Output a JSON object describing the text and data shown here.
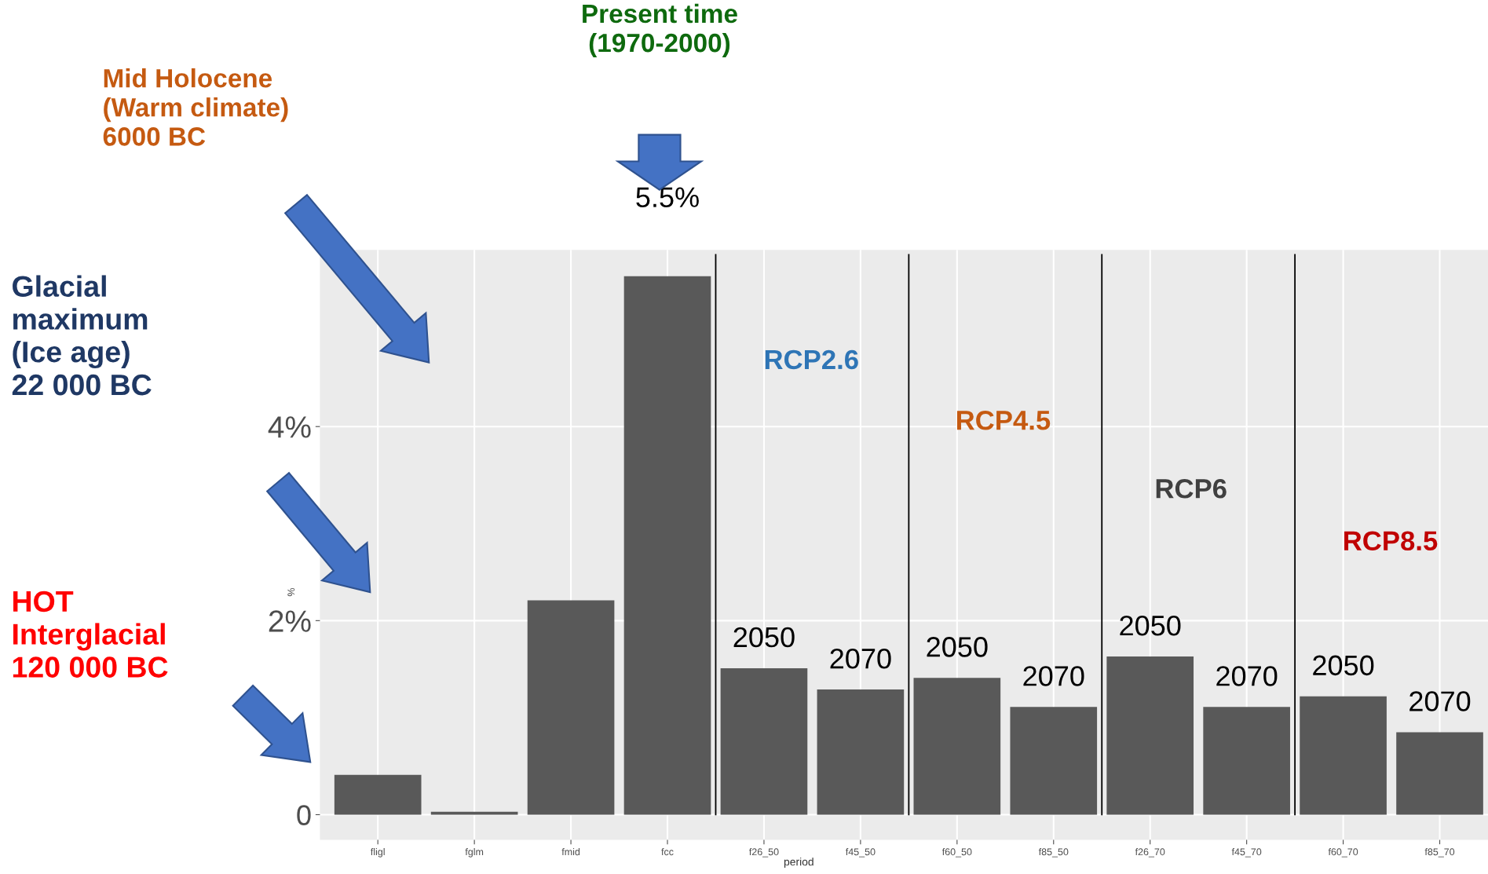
{
  "chart_data": {
    "type": "bar",
    "categories": [
      "fligl",
      "fglm",
      "fmid",
      "fcc",
      "f26_50",
      "f45_50",
      "f60_50",
      "f85_50",
      "f26_70",
      "f45_70",
      "f60_70",
      "f85_70"
    ],
    "values": [
      0.41,
      0.03,
      2.21,
      5.55,
      1.51,
      1.29,
      1.41,
      1.11,
      1.63,
      1.11,
      1.22,
      0.85
    ],
    "color": "#595959",
    "xlabel": "period",
    "ylabel": "%",
    "ylim": [
      -0.26,
      5.82
    ],
    "yticks": [
      0,
      {
        "value": 2,
        "label": "2%"
      },
      {
        "value": 4,
        "label": "4%"
      }
    ],
    "grid": true,
    "annotations": [
      "Present time\n(1970-2000)",
      "Mid Holocene\n(Warm climate)\n6000 BC",
      "Glacial\nmaximum\n(Ice age)\n22 000 BC",
      "HOT\nInterglacial\n120 000 BC",
      "RCP2.6",
      "RCP4.5",
      "RCP6",
      "RCP8.5",
      {
        "text": "5.5%",
        "x": "fcc",
        "y": 5.55
      },
      {
        "text": "2050",
        "x": "f26_50",
        "y": 1.51
      },
      {
        "text": "2070",
        "x": "f45_50",
        "y": 1.29
      },
      {
        "text": "2050",
        "x": "f60_50",
        "y": 1.41
      },
      {
        "text": "2070",
        "x": "f85_50",
        "y": 1.11
      },
      {
        "text": "2050",
        "x": "f26_70",
        "y": 1.63
      },
      {
        "text": "2070",
        "x": "f45_70",
        "y": 1.11
      },
      {
        "text": "2050",
        "x": "f60_70",
        "y": 1.22
      },
      {
        "text": "2070",
        "x": "f85_70",
        "y": 0.85
      }
    ]
  }
}
